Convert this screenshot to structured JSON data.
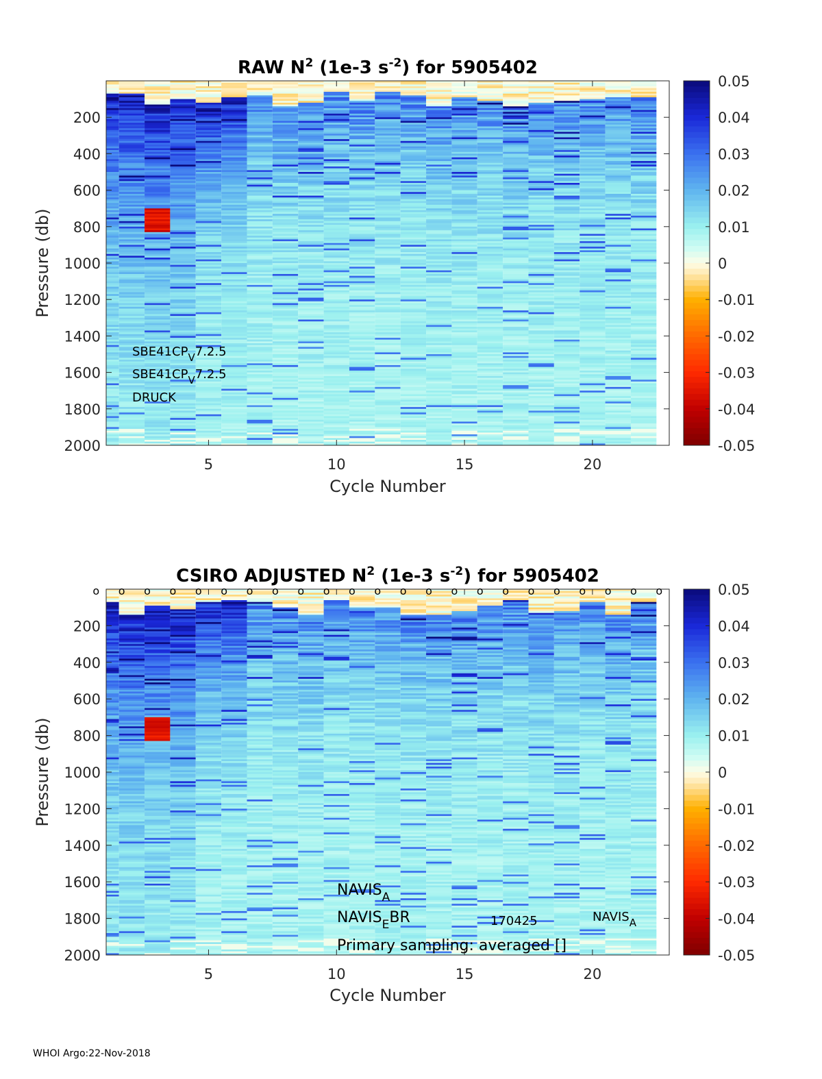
{
  "footer": "WHOI Argo:22-Nov-2018",
  "colormap": {
    "stops": [
      [
        -0.05,
        "#7f0000"
      ],
      [
        -0.04,
        "#c00000"
      ],
      [
        -0.03,
        "#ff2a00"
      ],
      [
        -0.02,
        "#ff6a00"
      ],
      [
        -0.01,
        "#ffb000"
      ],
      [
        -0.003,
        "#ffe8b0"
      ],
      [
        0.0,
        "#fdfde8"
      ],
      [
        0.004,
        "#cffcf3"
      ],
      [
        0.01,
        "#9af0ef"
      ],
      [
        0.02,
        "#5fb4ef"
      ],
      [
        0.03,
        "#3a70ef"
      ],
      [
        0.04,
        "#1a28d8"
      ],
      [
        0.05,
        "#0a0a7a"
      ]
    ]
  },
  "chart_data": [
    {
      "type": "heatmap",
      "title_parts": {
        "a": "RAW N",
        "sup1": "2",
        "b": " (1e-3 s",
        "sup2": "-2",
        "c": ") for 5905402"
      },
      "xlabel": "Cycle Number",
      "ylabel": "Pressure (db)",
      "xlim": [
        1,
        23
      ],
      "ylim": [
        0,
        2000
      ],
      "xticks": [
        5,
        10,
        15,
        20
      ],
      "yticks": [
        200,
        400,
        600,
        800,
        1000,
        1200,
        1400,
        1600,
        1800,
        2000
      ],
      "colorbar": {
        "clim": [
          -0.05,
          0.05
        ],
        "ticks": [
          "0.05",
          "0.04",
          "0.03",
          "0.02",
          "0.01",
          "0",
          "-0.01",
          "-0.02",
          "-0.03",
          "-0.04",
          "-0.05"
        ]
      },
      "cycles": [
        1,
        2,
        3,
        4,
        5,
        6,
        7,
        8,
        9,
        10,
        11,
        12,
        13,
        14,
        15,
        16,
        17,
        18,
        19,
        20,
        21,
        22
      ],
      "profile": {
        "surface_max_p": 140,
        "strong_value": 0.038,
        "mid_value": 0.02,
        "deep_value": 0.008
      },
      "annotations": [
        {
          "base": "SBE41CP",
          "sub": "V",
          "rest": "7.2.5"
        },
        {
          "base": "SBE41CP",
          "sub": "V",
          "rest": "7.2.5"
        },
        {
          "base": "DRUCK",
          "sub": "",
          "rest": ""
        }
      ]
    },
    {
      "type": "heatmap",
      "title_parts": {
        "a": "CSIRO  ADJUSTED N",
        "sup1": "2",
        "b": " (1e-3 s",
        "sup2": "-2",
        "c": ") for 5905402"
      },
      "xlabel": "Cycle Number",
      "ylabel": "Pressure (db)",
      "xlim": [
        1,
        23
      ],
      "ylim": [
        0,
        2000
      ],
      "xticks": [
        5,
        10,
        15,
        20
      ],
      "yticks": [
        200,
        400,
        600,
        800,
        1000,
        1200,
        1400,
        1600,
        1800,
        2000
      ],
      "colorbar": {
        "clim": [
          -0.05,
          0.05
        ],
        "ticks": [
          "0.05",
          "0.04",
          "0.03",
          "0.02",
          "0.01",
          "0",
          "-0.01",
          "-0.02",
          "-0.03",
          "-0.04",
          "-0.05"
        ]
      },
      "cycles": [
        1,
        2,
        3,
        4,
        5,
        6,
        7,
        8,
        9,
        10,
        11,
        12,
        13,
        14,
        15,
        16,
        17,
        18,
        19,
        20,
        21,
        22
      ],
      "marker_char": "o",
      "markers_x": [
        1,
        2,
        3,
        4,
        5,
        6,
        7,
        8,
        9,
        10,
        11,
        12,
        13,
        14,
        15,
        16,
        17,
        18,
        19,
        20,
        21,
        22,
        23
      ],
      "annotations": [
        {
          "base": "NAVIS",
          "sub": "A",
          "rest": ""
        },
        {
          "base": "NAVIS",
          "sub": "E",
          "rest": "BR"
        },
        {
          "base": "Primary sampling: averaged []",
          "sub": "",
          "rest": ""
        },
        {
          "base": "170425",
          "sub": "",
          "rest": ""
        },
        {
          "base": "NAVIS",
          "sub": "A",
          "rest": ""
        }
      ]
    }
  ]
}
